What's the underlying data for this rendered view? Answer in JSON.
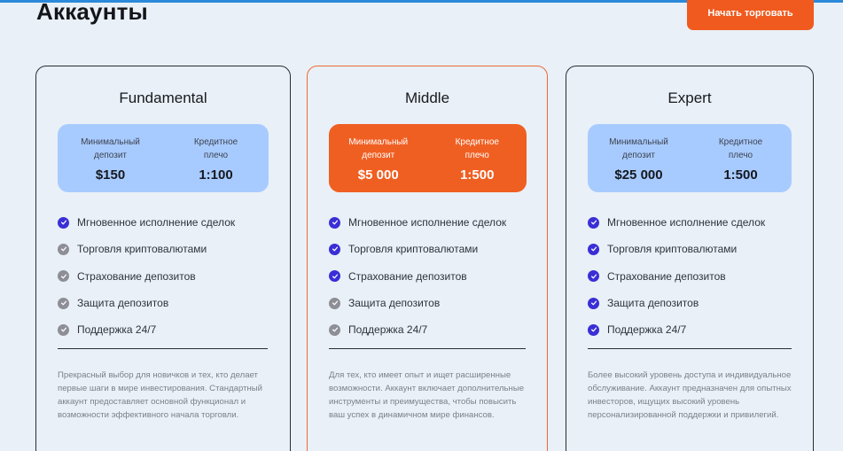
{
  "page": {
    "title": "Аккаунты",
    "cta_label": "Начать торговать"
  },
  "colors": {
    "accent": "#f05a1e",
    "stat_box": "#a8cbff",
    "check_on": "#3a2ed6",
    "check_off": "#8e8f96"
  },
  "icons": {
    "check": "check-circle-icon"
  },
  "cards": [
    {
      "name": "Fundamental",
      "min_deposit_label": "Минимальный\nдепозит",
      "min_deposit_value": "$150",
      "leverage_label": "Кредитное\nплечо",
      "leverage_value": "1:100",
      "features": [
        {
          "label": "Мгновенное исполнение сделок",
          "included": true
        },
        {
          "label": "Торговля криптовалютами",
          "included": false
        },
        {
          "label": "Страхование депозитов",
          "included": false
        },
        {
          "label": "Защита депозитов",
          "included": false
        },
        {
          "label": "Поддержка 24/7",
          "included": false
        }
      ],
      "description": "Прекрасный выбор для новичков и тех, кто делает первые шаги в мире инвестирования. Стандартный аккаунт предоставляет основной функционал и возможности эффективного начала торговли."
    },
    {
      "name": "Middle",
      "min_deposit_label": "Минимальный\nдепозит",
      "min_deposit_value": "$5 000",
      "leverage_label": "Кредитное\nплечо",
      "leverage_value": "1:500",
      "features": [
        {
          "label": "Мгновенное исполнение сделок",
          "included": true
        },
        {
          "label": "Торговля криптовалютами",
          "included": true
        },
        {
          "label": "Страхование депозитов",
          "included": true
        },
        {
          "label": "Защита депозитов",
          "included": false
        },
        {
          "label": "Поддержка 24/7",
          "included": false
        }
      ],
      "description": "Для тех, кто имеет опыт и ищет расширенные возможности. Аккаунт включает дополнительные инструменты и преимущества, чтобы повысить ваш успех в динамичном мире финансов."
    },
    {
      "name": "Expert",
      "min_deposit_label": "Минимальный\nдепозит",
      "min_deposit_value": "$25 000",
      "leverage_label": "Кредитное\nплечо",
      "leverage_value": "1:500",
      "features": [
        {
          "label": "Мгновенное исполнение сделок",
          "included": true
        },
        {
          "label": "Торговля криптовалютами",
          "included": true
        },
        {
          "label": "Страхование депозитов",
          "included": true
        },
        {
          "label": "Защита депозитов",
          "included": true
        },
        {
          "label": "Поддержка 24/7",
          "included": true
        }
      ],
      "description": "Более высокий уровень доступа и индивидуальное обслуживание. Аккаунт предназначен для опытных инвесторов, ищущих высокий уровень персонализированной поддержки и привилегий."
    }
  ]
}
